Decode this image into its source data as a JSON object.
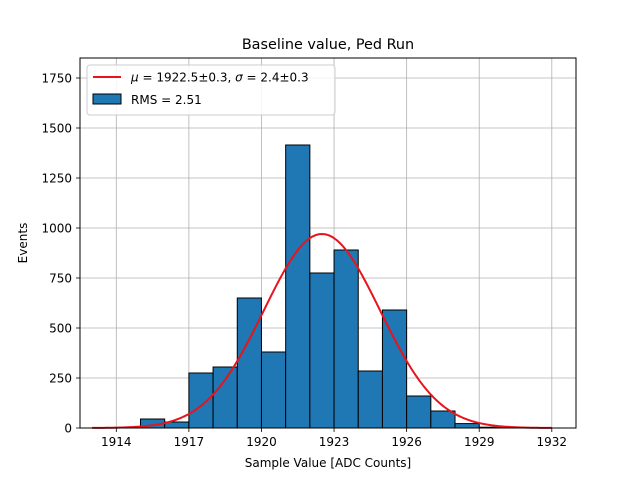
{
  "chart_data": {
    "type": "bar",
    "title": "Baseline value, Ped Run",
    "xlabel": "Sample Value [ADC Counts]",
    "ylabel": "Events",
    "xlim": [
      1912.5,
      1933.0
    ],
    "ylim": [
      0,
      1850
    ],
    "grid": true,
    "legend_position": "top-left",
    "xticks": [
      1914,
      1917,
      1920,
      1923,
      1926,
      1929,
      1932
    ],
    "yticks": [
      0,
      250,
      500,
      750,
      1000,
      1250,
      1500,
      1750
    ],
    "histogram": {
      "name": "RMS = 2.51",
      "color": "#1f77b4",
      "edgecolor": "#000000",
      "bin_width": 1,
      "bins": [
        {
          "x0": 1915,
          "x1": 1916,
          "value": 45
        },
        {
          "x0": 1916,
          "x1": 1917,
          "value": 30
        },
        {
          "x0": 1917,
          "x1": 1918,
          "value": 275
        },
        {
          "x0": 1918,
          "x1": 1919,
          "value": 305
        },
        {
          "x0": 1919,
          "x1": 1920,
          "value": 650
        },
        {
          "x0": 1920,
          "x1": 1921,
          "value": 380
        },
        {
          "x0": 1921,
          "x1": 1922,
          "value": 1415
        },
        {
          "x0": 1922,
          "x1": 1923,
          "value": 775
        },
        {
          "x0": 1923,
          "x1": 1924,
          "value": 890
        },
        {
          "x0": 1924,
          "x1": 1925,
          "value": 285
        },
        {
          "x0": 1925,
          "x1": 1926,
          "value": 590
        },
        {
          "x0": 1926,
          "x1": 1927,
          "value": 160
        },
        {
          "x0": 1927,
          "x1": 1928,
          "value": 85
        },
        {
          "x0": 1928,
          "x1": 1929,
          "value": 22
        },
        {
          "x0": 1929,
          "x1": 1930,
          "value": 4
        }
      ]
    },
    "fit": {
      "name": "$\\mu = 1922.5 \\pm 0.3, \\sigma = 2.4 \\pm 0.3$",
      "legend_parts": {
        "mu_symbol": "μ",
        "mu_text": " = 1922.5±0.3, ",
        "sigma_symbol": "σ",
        "sigma_text": " = 2.4±0.3"
      },
      "color": "#e8141c",
      "mu": 1922.5,
      "sigma": 2.4,
      "amplitude": 970,
      "x_range": [
        1913,
        1932
      ]
    }
  }
}
